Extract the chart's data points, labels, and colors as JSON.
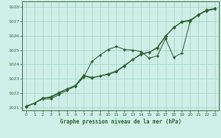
{
  "xlabel": "Graphe pression niveau de la mer (hPa)",
  "ylim": [
    1020.8,
    1028.4
  ],
  "xlim": [
    -0.5,
    23.5
  ],
  "yticks": [
    1021,
    1022,
    1023,
    1024,
    1025,
    1026,
    1027,
    1028
  ],
  "xticks": [
    0,
    1,
    2,
    3,
    4,
    5,
    6,
    7,
    8,
    9,
    10,
    11,
    12,
    13,
    14,
    15,
    16,
    17,
    18,
    19,
    20,
    21,
    22,
    23
  ],
  "bg_color": "#d0eee8",
  "grid_color": "#a8d8cc",
  "line_color": "#2a6030",
  "series": [
    [
      1021.1,
      1021.3,
      1021.6,
      1021.6,
      1021.9,
      1022.2,
      1022.5,
      1023.1,
      1024.2,
      1024.65,
      1025.05,
      1025.25,
      1025.05,
      1025.0,
      1024.9,
      1024.45,
      1024.6,
      1025.8,
      1024.5,
      1024.8,
      1027.0,
      1027.5,
      1027.75,
      1027.85
    ],
    [
      1021.1,
      1021.3,
      1021.65,
      1021.7,
      1022.0,
      1022.3,
      1022.5,
      1023.2,
      1023.05,
      1023.2,
      1023.3,
      1023.5,
      1023.9,
      1024.35,
      1024.7,
      1024.85,
      1025.2,
      1026.0,
      1026.55,
      1027.0,
      1027.1,
      1027.45,
      1027.8,
      1027.9
    ],
    [
      1021.05,
      1021.3,
      1021.65,
      1021.75,
      1022.05,
      1022.3,
      1022.55,
      1023.25,
      1023.1,
      1023.2,
      1023.35,
      1023.55,
      1023.95,
      1024.35,
      1024.75,
      1024.85,
      1025.15,
      1025.95,
      1026.6,
      1026.95,
      1027.05,
      1027.45,
      1027.75,
      1027.9
    ]
  ]
}
